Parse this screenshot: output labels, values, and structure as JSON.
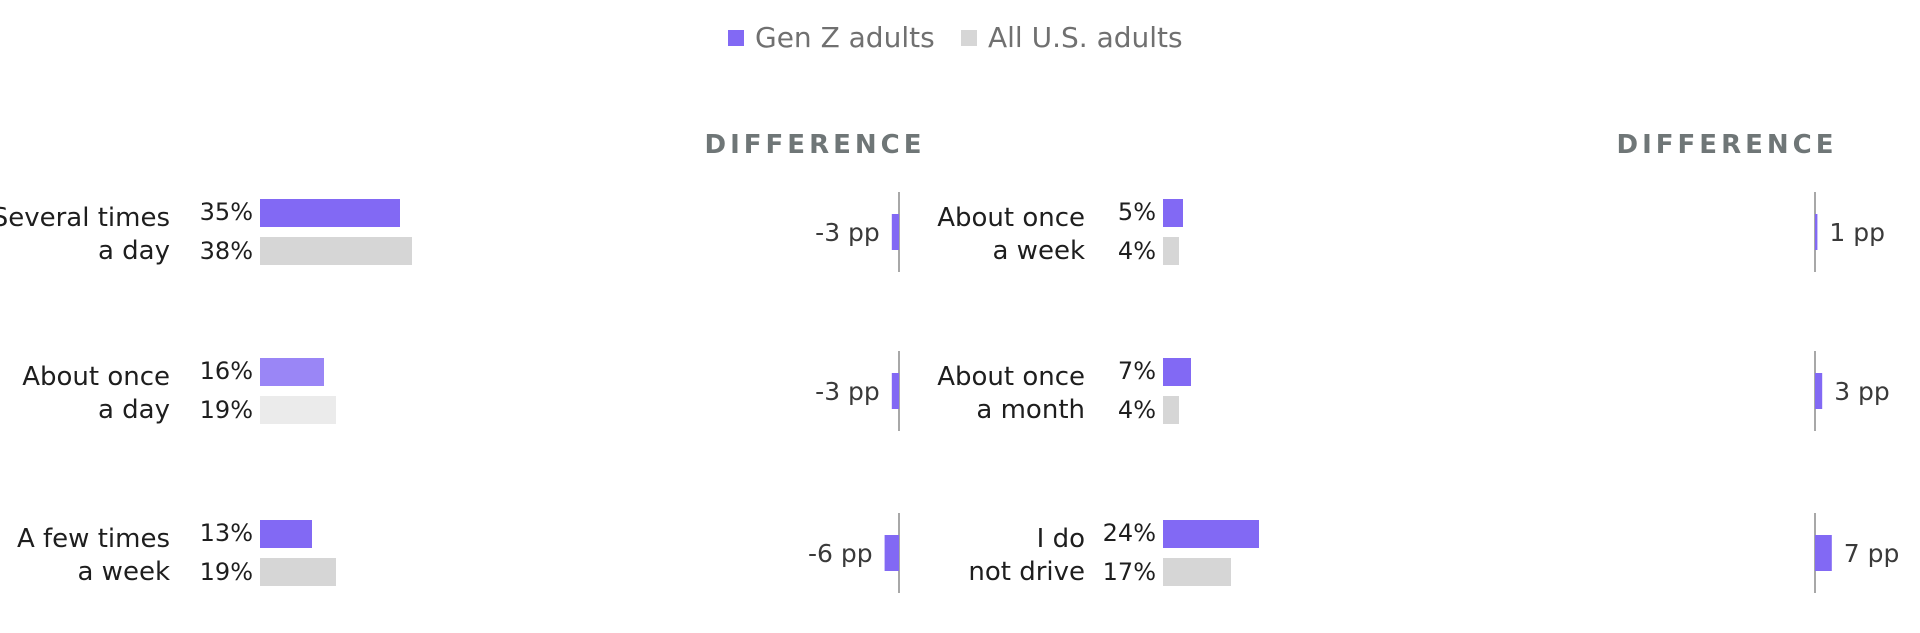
{
  "legend": {
    "gen_z": "Gen Z adults",
    "all_us": "All U.S. adults"
  },
  "colors": {
    "gen_z": "#8269f4",
    "gen_z_light": "#9a86f6",
    "all_us": "#d6d6d6",
    "all_us_light": "#ebebeb",
    "axis": "#a8a8a8"
  },
  "chart_data": {
    "type": "bar",
    "series": [
      {
        "name": "Gen Z adults",
        "values": [
          35,
          16,
          13,
          5,
          7,
          24
        ]
      },
      {
        "name": "All U.S. adults",
        "values": [
          38,
          19,
          19,
          4,
          4,
          17
        ]
      }
    ],
    "difference_header": "DIFFERENCE",
    "panels": [
      {
        "rows": [
          {
            "label_lines": [
              "Several times",
              "a day"
            ],
            "gen_z": 35,
            "all_us": 38,
            "gen_z_label": "35%",
            "all_us_label": "38%",
            "diff": -3,
            "diff_label": "-3 pp"
          },
          {
            "label_lines": [
              "About once",
              "a day"
            ],
            "gen_z": 16,
            "all_us": 19,
            "gen_z_label": "16%",
            "all_us_label": "19%",
            "diff": -3,
            "diff_label": "-3 pp"
          },
          {
            "label_lines": [
              "A few times",
              "a week"
            ],
            "gen_z": 13,
            "all_us": 19,
            "gen_z_label": "13%",
            "all_us_label": "19%",
            "diff": -6,
            "diff_label": "-6 pp"
          }
        ]
      },
      {
        "rows": [
          {
            "label_lines": [
              "About once",
              "a week"
            ],
            "gen_z": 5,
            "all_us": 4,
            "gen_z_label": "5%",
            "all_us_label": "4%",
            "diff": 1,
            "diff_label": "1 pp"
          },
          {
            "label_lines": [
              "About once",
              "a month"
            ],
            "gen_z": 7,
            "all_us": 4,
            "gen_z_label": "7%",
            "all_us_label": "4%",
            "diff": 3,
            "diff_label": "3 pp"
          },
          {
            "label_lines": [
              "I do",
              "not drive"
            ],
            "gen_z": 24,
            "all_us": 17,
            "gen_z_label": "24%",
            "all_us_label": "17%",
            "diff": 7,
            "diff_label": "7 pp"
          }
        ]
      }
    ]
  }
}
